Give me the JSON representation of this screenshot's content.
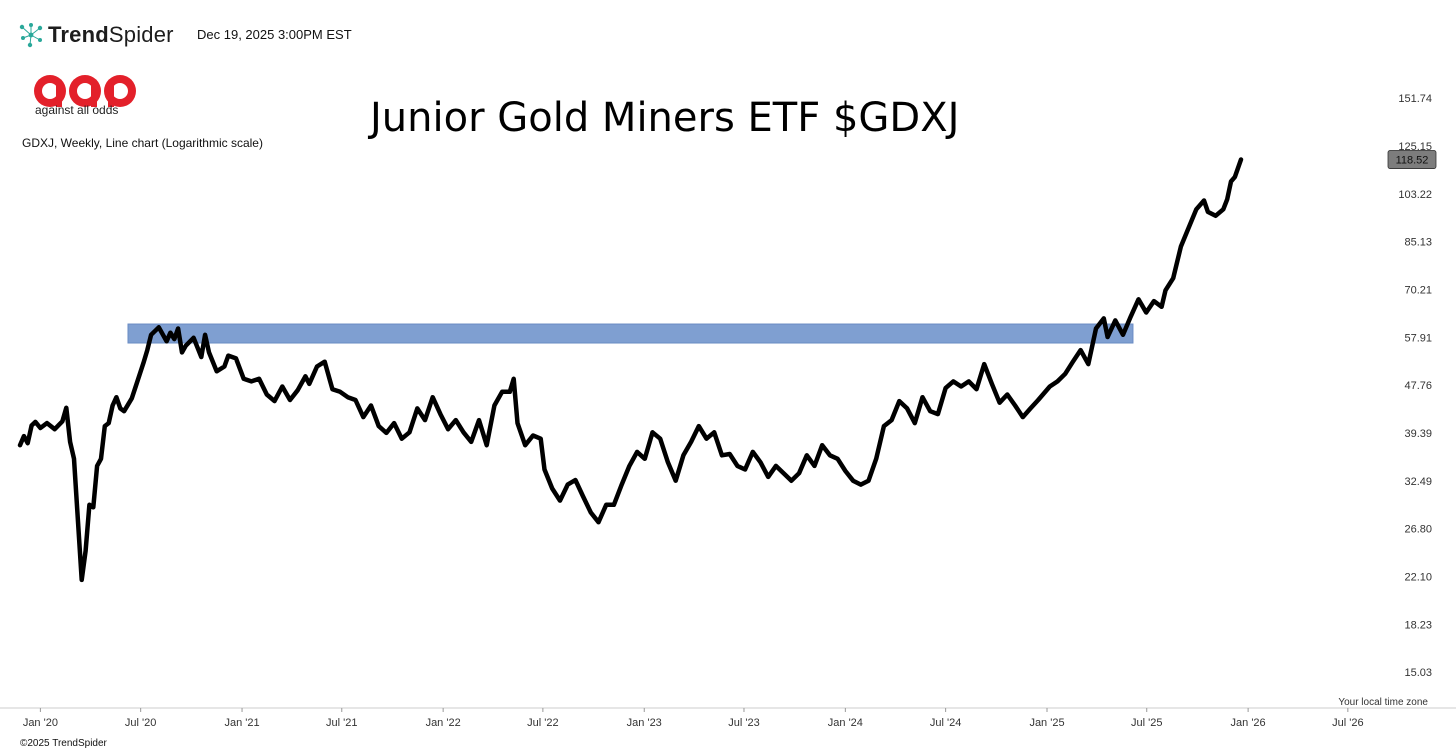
{
  "header": {
    "brand_bold": "Trend",
    "brand_light": "Spider",
    "timestamp": "Dec 19, 2025 3:00PM EST"
  },
  "logo": {
    "tagline": "against all odds"
  },
  "footer": {
    "timezone_note": "Your local time zone",
    "copyright": "©2025 TrendSpider"
  },
  "colors": {
    "line": "#000000",
    "zone": "#7f9fd1",
    "zone_stroke": "#6a8cc4",
    "price_badge": "#7d7d7d",
    "aao_red": "#e3202a"
  },
  "chart_data": {
    "type": "line",
    "title": "Junior Gold Miners ETF $GDXJ",
    "subtitle": "GDXJ, Weekly, Line chart (Logarithmic scale)",
    "yscale": "log",
    "ylim": [
      13.6,
      170
    ],
    "y_ticks": [
      151.74,
      125.15,
      103.22,
      85.13,
      70.21,
      57.91,
      47.76,
      39.39,
      32.49,
      26.8,
      22.1,
      18.23,
      15.03
    ],
    "y_tick_labels": [
      "151.74",
      "125.15",
      "103.22",
      "85.13",
      "70.21",
      "57.91",
      "47.76",
      "39.39",
      "32.49",
      "26.80",
      "22.10",
      "18.23",
      "15.03"
    ],
    "xlim": [
      "2019-11-25",
      "2026-09-01"
    ],
    "x_ticks": [
      {
        "date": "2020-01-01",
        "label": "Jan '20"
      },
      {
        "date": "2020-07-01",
        "label": "Jul '20"
      },
      {
        "date": "2021-01-01",
        "label": "Jan '21"
      },
      {
        "date": "2021-07-01",
        "label": "Jul '21"
      },
      {
        "date": "2022-01-01",
        "label": "Jan '22"
      },
      {
        "date": "2022-07-01",
        "label": "Jul '22"
      },
      {
        "date": "2023-01-01",
        "label": "Jan '23"
      },
      {
        "date": "2023-07-01",
        "label": "Jul '23"
      },
      {
        "date": "2024-01-01",
        "label": "Jan '24"
      },
      {
        "date": "2024-07-01",
        "label": "Jul '24"
      },
      {
        "date": "2025-01-01",
        "label": "Jan '25"
      },
      {
        "date": "2025-07-01",
        "label": "Jul '25"
      },
      {
        "date": "2026-01-01",
        "label": "Jan '26"
      },
      {
        "date": "2026-07-01",
        "label": "Jul '26"
      }
    ],
    "last_price": 118.52,
    "last_price_label": "118.52",
    "resistance_zone": {
      "y_low": 56.6,
      "y_high": 61.1,
      "x_start": "2020-06-08",
      "x_end": "2025-06-06"
    },
    "series": [
      {
        "points": [
          [
            "2019-11-25",
            37.5
          ],
          [
            "2019-12-02",
            38.9
          ],
          [
            "2019-12-09",
            37.8
          ],
          [
            "2019-12-16",
            40.6
          ],
          [
            "2019-12-23",
            41.2
          ],
          [
            "2020-01-01",
            40.2
          ],
          [
            "2020-01-13",
            41.0
          ],
          [
            "2020-01-27",
            40.0
          ],
          [
            "2020-02-10",
            41.3
          ],
          [
            "2020-02-17",
            43.6
          ],
          [
            "2020-02-24",
            38.0
          ],
          [
            "2020-03-02",
            35.5
          ],
          [
            "2020-03-16",
            21.8
          ],
          [
            "2020-03-23",
            24.5
          ],
          [
            "2020-03-30",
            29.5
          ],
          [
            "2020-04-06",
            29.2
          ],
          [
            "2020-04-13",
            34.5
          ],
          [
            "2020-04-20",
            35.5
          ],
          [
            "2020-04-27",
            40.5
          ],
          [
            "2020-05-04",
            41.0
          ],
          [
            "2020-05-11",
            44.0
          ],
          [
            "2020-05-18",
            45.5
          ],
          [
            "2020-05-25",
            43.5
          ],
          [
            "2020-06-01",
            43.0
          ],
          [
            "2020-06-15",
            45.3
          ],
          [
            "2020-06-22",
            47.5
          ],
          [
            "2020-07-06",
            52.2
          ],
          [
            "2020-07-13",
            55.0
          ],
          [
            "2020-07-20",
            58.5
          ],
          [
            "2020-08-03",
            60.3
          ],
          [
            "2020-08-17",
            57.0
          ],
          [
            "2020-08-24",
            59.0
          ],
          [
            "2020-08-31",
            57.5
          ],
          [
            "2020-09-07",
            60.0
          ],
          [
            "2020-09-14",
            54.5
          ],
          [
            "2020-09-21",
            56.0
          ],
          [
            "2020-10-05",
            57.8
          ],
          [
            "2020-10-19",
            53.5
          ],
          [
            "2020-10-26",
            58.5
          ],
          [
            "2020-11-02",
            54.5
          ],
          [
            "2020-11-16",
            50.5
          ],
          [
            "2020-11-30",
            51.5
          ],
          [
            "2020-12-07",
            53.8
          ],
          [
            "2020-12-21",
            53.2
          ],
          [
            "2021-01-04",
            49.0
          ],
          [
            "2021-01-18",
            48.5
          ],
          [
            "2021-02-01",
            49.0
          ],
          [
            "2021-02-15",
            46.0
          ],
          [
            "2021-03-01",
            44.8
          ],
          [
            "2021-03-15",
            47.5
          ],
          [
            "2021-03-29",
            45.0
          ],
          [
            "2021-04-12",
            46.8
          ],
          [
            "2021-04-26",
            49.5
          ],
          [
            "2021-05-03",
            48.0
          ],
          [
            "2021-05-17",
            51.5
          ],
          [
            "2021-05-31",
            52.5
          ],
          [
            "2021-06-14",
            47.0
          ],
          [
            "2021-06-28",
            46.5
          ],
          [
            "2021-07-12",
            45.5
          ],
          [
            "2021-07-26",
            45.0
          ],
          [
            "2021-08-09",
            42.0
          ],
          [
            "2021-08-23",
            44.0
          ],
          [
            "2021-09-06",
            40.5
          ],
          [
            "2021-09-20",
            39.4
          ],
          [
            "2021-10-04",
            41.0
          ],
          [
            "2021-10-18",
            38.5
          ],
          [
            "2021-11-01",
            39.5
          ],
          [
            "2021-11-15",
            43.5
          ],
          [
            "2021-11-29",
            41.5
          ],
          [
            "2021-12-13",
            45.5
          ],
          [
            "2021-12-27",
            42.5
          ],
          [
            "2022-01-10",
            40.0
          ],
          [
            "2022-01-24",
            41.5
          ],
          [
            "2022-02-07",
            39.5
          ],
          [
            "2022-02-21",
            38.0
          ],
          [
            "2022-03-07",
            41.5
          ],
          [
            "2022-03-21",
            37.5
          ],
          [
            "2022-04-04",
            44.0
          ],
          [
            "2022-04-18",
            46.5
          ],
          [
            "2022-05-02",
            46.5
          ],
          [
            "2022-05-09",
            49.0
          ],
          [
            "2022-05-16",
            41.0
          ],
          [
            "2022-05-30",
            37.5
          ],
          [
            "2022-06-13",
            39.0
          ],
          [
            "2022-06-27",
            38.5
          ],
          [
            "2022-07-04",
            34.0
          ],
          [
            "2022-07-18",
            31.5
          ],
          [
            "2022-08-01",
            30.0
          ],
          [
            "2022-08-15",
            32.0
          ],
          [
            "2022-08-29",
            32.6
          ],
          [
            "2022-09-12",
            30.5
          ],
          [
            "2022-09-26",
            28.6
          ],
          [
            "2022-10-10",
            27.5
          ],
          [
            "2022-10-24",
            29.5
          ],
          [
            "2022-11-07",
            29.5
          ],
          [
            "2022-11-21",
            32.0
          ],
          [
            "2022-12-05",
            34.5
          ],
          [
            "2022-12-19",
            36.5
          ],
          [
            "2023-01-02",
            35.5
          ],
          [
            "2023-01-16",
            39.5
          ],
          [
            "2023-01-30",
            38.5
          ],
          [
            "2023-02-13",
            35.0
          ],
          [
            "2023-02-27",
            32.5
          ],
          [
            "2023-03-13",
            36.0
          ],
          [
            "2023-03-27",
            38.0
          ],
          [
            "2023-04-10",
            40.5
          ],
          [
            "2023-04-24",
            38.5
          ],
          [
            "2023-05-08",
            39.5
          ],
          [
            "2023-05-22",
            36.0
          ],
          [
            "2023-06-05",
            36.2
          ],
          [
            "2023-06-19",
            34.5
          ],
          [
            "2023-07-03",
            34.0
          ],
          [
            "2023-07-17",
            36.5
          ],
          [
            "2023-07-31",
            35.0
          ],
          [
            "2023-08-14",
            33.0
          ],
          [
            "2023-08-28",
            34.5
          ],
          [
            "2023-09-11",
            33.5
          ],
          [
            "2023-09-25",
            32.5
          ],
          [
            "2023-10-09",
            33.5
          ],
          [
            "2023-10-23",
            36.0
          ],
          [
            "2023-11-06",
            34.5
          ],
          [
            "2023-11-20",
            37.5
          ],
          [
            "2023-12-04",
            36.0
          ],
          [
            "2023-12-18",
            35.5
          ],
          [
            "2024-01-01",
            33.8
          ],
          [
            "2024-01-15",
            32.5
          ],
          [
            "2024-01-29",
            32.0
          ],
          [
            "2024-02-12",
            32.5
          ],
          [
            "2024-02-26",
            35.5
          ],
          [
            "2024-03-11",
            40.5
          ],
          [
            "2024-03-25",
            41.5
          ],
          [
            "2024-04-08",
            44.8
          ],
          [
            "2024-04-22",
            43.5
          ],
          [
            "2024-05-06",
            41.0
          ],
          [
            "2024-05-20",
            45.5
          ],
          [
            "2024-06-03",
            43.0
          ],
          [
            "2024-06-17",
            42.5
          ],
          [
            "2024-07-01",
            47.2
          ],
          [
            "2024-07-15",
            48.5
          ],
          [
            "2024-07-29",
            47.5
          ],
          [
            "2024-08-12",
            48.5
          ],
          [
            "2024-08-26",
            47.0
          ],
          [
            "2024-09-09",
            52.0
          ],
          [
            "2024-09-23",
            48.0
          ],
          [
            "2024-10-07",
            44.5
          ],
          [
            "2024-10-21",
            46.0
          ],
          [
            "2024-11-04",
            44.0
          ],
          [
            "2024-11-18",
            42.0
          ],
          [
            "2024-12-02",
            43.5
          ],
          [
            "2024-12-16",
            45.0
          ],
          [
            "2025-01-06",
            47.5
          ],
          [
            "2025-01-20",
            48.5
          ],
          [
            "2025-02-03",
            50.0
          ],
          [
            "2025-02-17",
            52.5
          ],
          [
            "2025-03-03",
            55.0
          ],
          [
            "2025-03-17",
            52.0
          ],
          [
            "2025-03-31",
            60.0
          ],
          [
            "2025-04-14",
            62.5
          ],
          [
            "2025-04-21",
            58.0
          ],
          [
            "2025-05-05",
            62.0
          ],
          [
            "2025-05-19",
            58.5
          ],
          [
            "2025-06-02",
            63.0
          ],
          [
            "2025-06-16",
            67.5
          ],
          [
            "2025-06-30",
            64.0
          ],
          [
            "2025-07-14",
            67.0
          ],
          [
            "2025-07-28",
            65.5
          ],
          [
            "2025-08-04",
            70.0
          ],
          [
            "2025-08-18",
            73.5
          ],
          [
            "2025-09-01",
            83.5
          ],
          [
            "2025-09-15",
            90.0
          ],
          [
            "2025-09-29",
            97.0
          ],
          [
            "2025-10-13",
            100.5
          ],
          [
            "2025-10-20",
            96.0
          ],
          [
            "2025-11-03",
            94.5
          ],
          [
            "2025-11-17",
            97.0
          ],
          [
            "2025-11-24",
            101.0
          ],
          [
            "2025-12-01",
            108.5
          ],
          [
            "2025-12-08",
            110.5
          ],
          [
            "2025-12-19",
            118.52
          ]
        ]
      }
    ]
  }
}
